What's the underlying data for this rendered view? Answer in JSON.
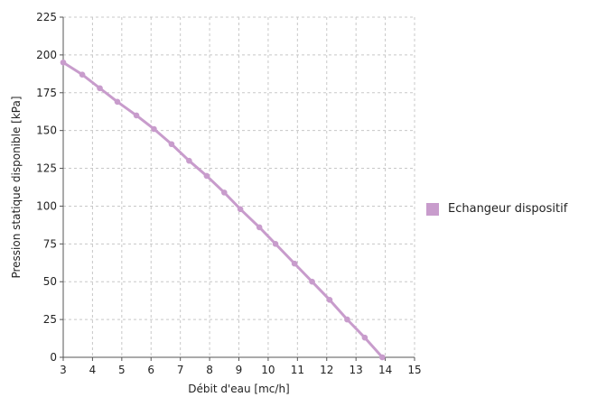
{
  "chart_data": {
    "type": "line",
    "title": "",
    "xlabel": "Débit d'eau [mc/h]",
    "ylabel": "Pression statique disponible [kPa]",
    "xlim": [
      3,
      15
    ],
    "ylim": [
      0,
      225
    ],
    "x_ticks": [
      "3",
      "4",
      "5",
      "6",
      "7",
      "8",
      "9",
      "10",
      "11",
      "12",
      "13",
      "14",
      "15"
    ],
    "y_ticks": [
      "0",
      "25",
      "50",
      "75",
      "100",
      "125",
      "150",
      "175",
      "200",
      "225"
    ],
    "grid": true,
    "legend_position": "right",
    "series": [
      {
        "name": "Echangeur dispositif",
        "color": "#c89ccc",
        "x": [
          3.0,
          3.65,
          4.25,
          4.85,
          5.5,
          6.1,
          6.7,
          7.3,
          7.9,
          8.5,
          9.05,
          9.7,
          10.25,
          10.9,
          11.5,
          12.1,
          12.7,
          13.3,
          13.9
        ],
        "y": [
          195,
          187,
          178,
          169,
          160,
          151,
          141,
          130,
          120,
          109,
          98,
          86,
          75,
          62,
          50,
          38,
          25,
          13,
          0
        ]
      }
    ]
  }
}
